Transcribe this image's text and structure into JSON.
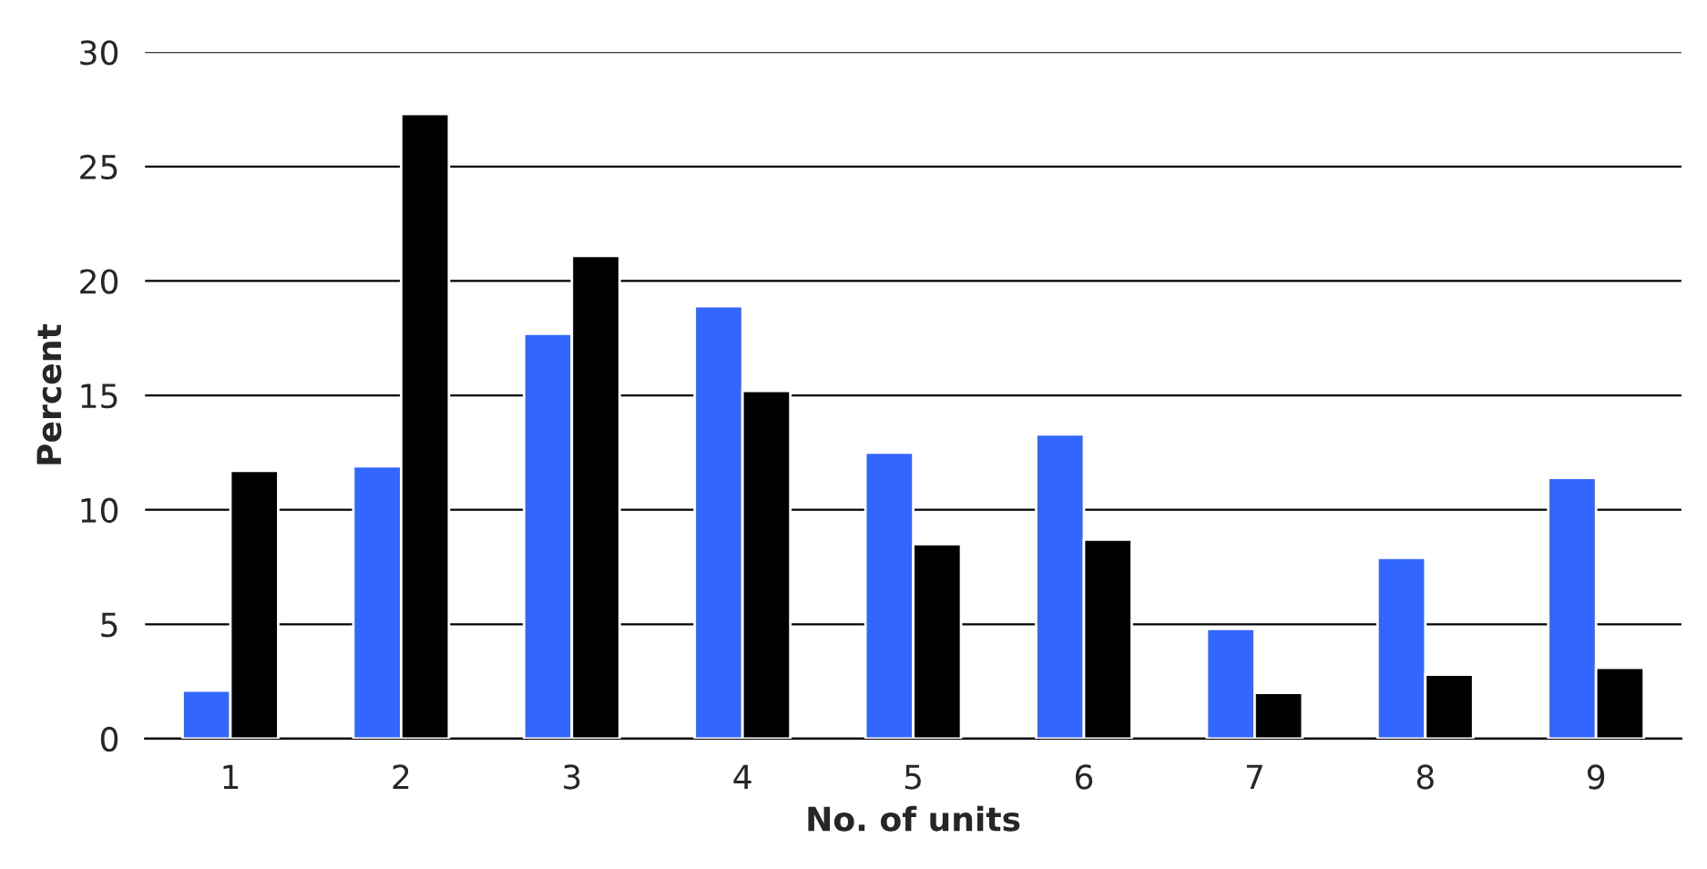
{
  "chart_data": {
    "type": "bar",
    "xlabel": "No. of units",
    "ylabel": "Percent",
    "categories": [
      "1",
      "2",
      "3",
      "4",
      "5",
      "6",
      "7",
      "8",
      "9"
    ],
    "series": [
      {
        "color": "#3366ff",
        "values": [
          2.1,
          11.9,
          17.7,
          18.9,
          12.5,
          13.3,
          4.8,
          7.9,
          11.4
        ]
      },
      {
        "color": "#000000",
        "values": [
          11.7,
          27.3,
          21.1,
          15.2,
          8.5,
          8.7,
          2.0,
          2.8,
          3.1
        ]
      }
    ],
    "ylim": [
      0,
      30
    ],
    "yticks": [
      0,
      5,
      10,
      15,
      20,
      25,
      30
    ],
    "grid": "y",
    "legend": false
  }
}
